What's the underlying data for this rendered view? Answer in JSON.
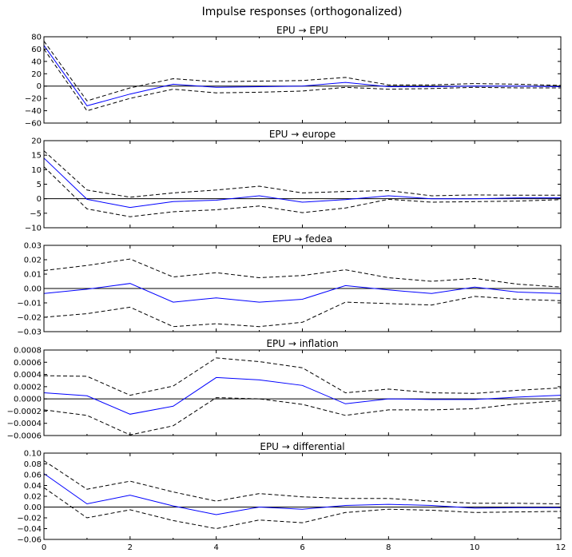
{
  "figure_title": "Impulse responses (orthogonalized)",
  "chart_data": [
    {
      "type": "line",
      "title": "EPU → EPU",
      "x": [
        0,
        1,
        2,
        3,
        4,
        5,
        6,
        7,
        8,
        9,
        10,
        11,
        12
      ],
      "xticks": [
        "0",
        "2",
        "4",
        "6",
        "8",
        "10",
        "12"
      ],
      "ylim": [
        -60,
        80
      ],
      "yticks": [
        -60,
        -40,
        -20,
        0,
        20,
        40,
        60,
        80
      ],
      "ytick_labels": [
        "−60",
        "−40",
        "−20",
        "0",
        "20",
        "40",
        "60",
        "80"
      ],
      "series": [
        {
          "role": "response",
          "color": "#0000ff",
          "values": [
            66,
            -32,
            -13,
            3,
            -2,
            -1,
            0,
            6,
            -1,
            -1,
            0,
            0,
            -1
          ]
        },
        {
          "role": "upper",
          "color": "#000000",
          "values": [
            73,
            -24,
            -3,
            12,
            7,
            8,
            9,
            14,
            2,
            2,
            4,
            3,
            1
          ]
        },
        {
          "role": "lower",
          "color": "#000000",
          "values": [
            60,
            -40,
            -20,
            -5,
            -11,
            -10,
            -8,
            -2,
            -5,
            -4,
            -2,
            -3,
            -3
          ]
        }
      ]
    },
    {
      "type": "line",
      "title": "EPU → europe",
      "x": [
        0,
        1,
        2,
        3,
        4,
        5,
        6,
        7,
        8,
        9,
        10,
        11,
        12
      ],
      "xticks": [
        "0",
        "2",
        "4",
        "6",
        "8",
        "10",
        "12"
      ],
      "ylim": [
        -10,
        20
      ],
      "yticks": [
        -10,
        -5,
        0,
        5,
        10,
        15,
        20
      ],
      "ytick_labels": [
        "−10",
        "−5",
        "0",
        "5",
        "10",
        "15",
        "20"
      ],
      "series": [
        {
          "role": "response",
          "color": "#0000ff",
          "values": [
            14,
            -0.2,
            -3,
            -1,
            -0.5,
            1,
            -1.2,
            -0.3,
            1,
            0,
            0,
            0.3,
            0.3
          ]
        },
        {
          "role": "upper",
          "color": "#000000",
          "values": [
            16.5,
            3,
            0.5,
            2,
            3,
            4.3,
            2,
            2.5,
            2.8,
            1,
            1.3,
            1.2,
            1.2
          ]
        },
        {
          "role": "lower",
          "color": "#000000",
          "values": [
            11,
            -3.5,
            -6.2,
            -4.5,
            -3.8,
            -2.5,
            -4.8,
            -3.2,
            -0.2,
            -1.2,
            -1,
            -0.8,
            -0.3
          ]
        }
      ]
    },
    {
      "type": "line",
      "title": "EPU → fedea",
      "x": [
        0,
        1,
        2,
        3,
        4,
        5,
        6,
        7,
        8,
        9,
        10,
        11,
        12
      ],
      "xticks": [
        "0",
        "2",
        "4",
        "6",
        "8",
        "10",
        "12"
      ],
      "ylim": [
        -0.03,
        0.03
      ],
      "yticks": [
        -0.03,
        -0.02,
        -0.01,
        0,
        0.01,
        0.02,
        0.03
      ],
      "ytick_labels": [
        "−0.03",
        "−0.02",
        "−0.01",
        "0.00",
        "0.01",
        "0.02",
        "0.03"
      ],
      "series": [
        {
          "role": "response",
          "color": "#0000ff",
          "values": [
            -0.0035,
            -0.0005,
            0.0035,
            -0.0095,
            -0.0065,
            -0.0095,
            -0.0075,
            0.002,
            -0.001,
            -0.0035,
            0.001,
            -0.0025,
            -0.0035
          ]
        },
        {
          "role": "upper",
          "color": "#000000",
          "values": [
            0.0125,
            0.016,
            0.0205,
            0.008,
            0.011,
            0.0075,
            0.009,
            0.013,
            0.0075,
            0.005,
            0.007,
            0.003,
            0.001
          ]
        },
        {
          "role": "lower",
          "color": "#000000",
          "values": [
            -0.02,
            -0.0175,
            -0.013,
            -0.0265,
            -0.0245,
            -0.0265,
            -0.0235,
            -0.0095,
            -0.0105,
            -0.0115,
            -0.0055,
            -0.0075,
            -0.0085
          ]
        }
      ]
    },
    {
      "type": "line",
      "title": "EPU → inflation",
      "x": [
        0,
        1,
        2,
        3,
        4,
        5,
        6,
        7,
        8,
        9,
        10,
        11,
        12
      ],
      "xticks": [
        "0",
        "2",
        "4",
        "6",
        "8",
        "10",
        "12"
      ],
      "ylim": [
        -0.0006,
        0.0008
      ],
      "yticks": [
        -0.0006,
        -0.0004,
        -0.0002,
        0,
        0.0002,
        0.0004,
        0.0006,
        0.0008
      ],
      "ytick_labels": [
        "−0.0006",
        "−0.0004",
        "−0.0002",
        "0.0000",
        "0.0002",
        "0.0004",
        "0.0006",
        "0.0008"
      ],
      "series": [
        {
          "role": "response",
          "color": "#0000ff",
          "values": [
            0.0001,
            5e-05,
            -0.00025,
            -0.00012,
            0.00035,
            0.00031,
            0.00022,
            -8e-05,
            0,
            -1e-05,
            -1e-05,
            3e-05,
            6e-05
          ]
        },
        {
          "role": "upper",
          "color": "#000000",
          "values": [
            0.00038,
            0.00037,
            6e-05,
            0.00021,
            0.00067,
            0.00061,
            0.00051,
            0.0001,
            0.00016,
            0.0001,
            9e-05,
            0.00014,
            0.00018
          ]
        },
        {
          "role": "lower",
          "color": "#000000",
          "values": [
            -0.00018,
            -0.00027,
            -0.00059,
            -0.00044,
            2e-05,
            0,
            -9e-05,
            -0.00027,
            -0.00018,
            -0.00018,
            -0.00016,
            -8e-05,
            -3e-05
          ]
        }
      ]
    },
    {
      "type": "line",
      "title": "EPU → differential",
      "x": [
        0,
        1,
        2,
        3,
        4,
        5,
        6,
        7,
        8,
        9,
        10,
        11,
        12
      ],
      "xticks": [
        "0",
        "2",
        "4",
        "6",
        "8",
        "10",
        "12"
      ],
      "ylim": [
        -0.06,
        0.1
      ],
      "yticks": [
        -0.06,
        -0.04,
        -0.02,
        0,
        0.02,
        0.04,
        0.06,
        0.08,
        0.1
      ],
      "ytick_labels": [
        "−0.06",
        "−0.04",
        "−0.02",
        "0.00",
        "0.02",
        "0.04",
        "0.06",
        "0.08",
        "0.10"
      ],
      "series": [
        {
          "role": "response",
          "color": "#0000ff",
          "values": [
            0.062,
            0.006,
            0.022,
            0.002,
            -0.014,
            0,
            -0.004,
            0.003,
            0.005,
            0.003,
            -0.002,
            -0.001,
            -0.001
          ]
        },
        {
          "role": "upper",
          "color": "#000000",
          "values": [
            0.086,
            0.033,
            0.048,
            0.028,
            0.011,
            0.025,
            0.019,
            0.016,
            0.016,
            0.011,
            0.007,
            0.007,
            0.006
          ]
        },
        {
          "role": "lower",
          "color": "#000000",
          "values": [
            0.036,
            -0.02,
            -0.005,
            -0.025,
            -0.04,
            -0.024,
            -0.029,
            -0.01,
            -0.004,
            -0.006,
            -0.01,
            -0.009,
            -0.008
          ]
        }
      ]
    }
  ]
}
